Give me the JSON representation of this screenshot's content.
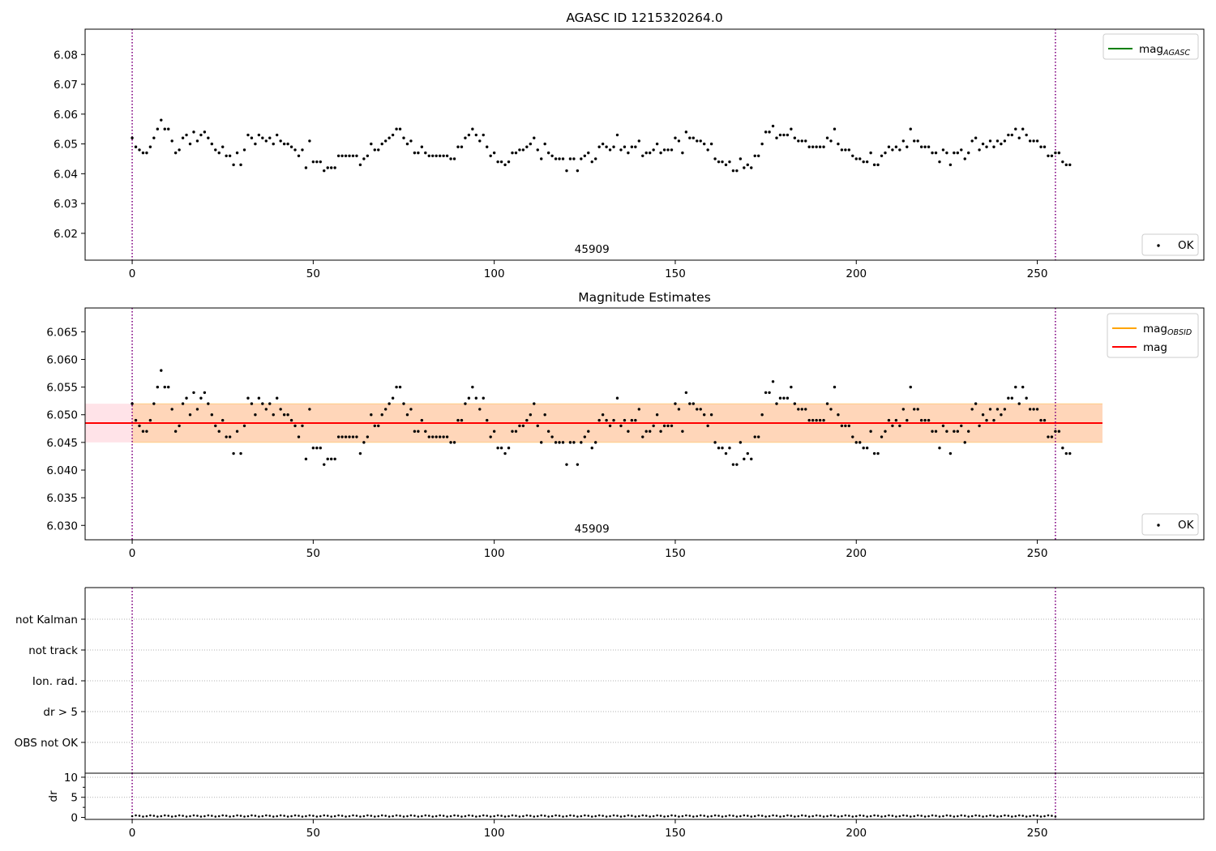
{
  "figure": {
    "top_title": "AGASC ID 1215320264.0",
    "middle_title": "Magnitude Estimates"
  },
  "chart_data": [
    {
      "type": "scatter",
      "panel": "top",
      "title": "AGASC ID 1215320264.0",
      "xlim": [
        -13,
        296
      ],
      "ylim": [
        6.011,
        6.0885
      ],
      "xticks": [
        0,
        50,
        100,
        150,
        200,
        250
      ],
      "yticks": [
        6.02,
        6.03,
        6.04,
        6.05,
        6.06,
        6.07,
        6.08
      ],
      "vlines": [
        0,
        255
      ],
      "annotation": "45909",
      "legend": {
        "upper": {
          "placement": "top-right",
          "entries": [
            {
              "label": "mag",
              "sub": "AGASC",
              "color": "#008000",
              "kind": "line"
            }
          ]
        },
        "lower": {
          "placement": "bottom-right",
          "entries": [
            {
              "label": "OK",
              "color": "#000000",
              "kind": "marker"
            }
          ]
        }
      },
      "series": [
        {
          "name": "OK",
          "x_start": 0,
          "x_step": 1,
          "y": [
            6.052,
            6.049,
            6.048,
            6.047,
            6.047,
            6.049,
            6.052,
            6.055,
            6.058,
            6.055,
            6.055,
            6.051,
            6.047,
            6.048,
            6.052,
            6.053,
            6.05,
            6.054,
            6.051,
            6.053,
            6.054,
            6.052,
            6.05,
            6.048,
            6.047,
            6.049,
            6.046,
            6.046,
            6.043,
            6.047,
            6.043,
            6.048,
            6.053,
            6.052,
            6.05,
            6.053,
            6.052,
            6.051,
            6.052,
            6.05,
            6.053,
            6.051,
            6.05,
            6.05,
            6.049,
            6.048,
            6.046,
            6.048,
            6.042,
            6.051,
            6.044,
            6.044,
            6.044,
            6.041,
            6.042,
            6.042,
            6.042,
            6.046,
            6.046,
            6.046,
            6.046,
            6.046,
            6.046,
            6.043,
            6.045,
            6.046,
            6.05,
            6.048,
            6.048,
            6.05,
            6.051,
            6.052,
            6.053,
            6.055,
            6.055,
            6.052,
            6.05,
            6.051,
            6.047,
            6.047,
            6.049,
            6.047,
            6.046,
            6.046,
            6.046,
            6.046,
            6.046,
            6.046,
            6.045,
            6.045,
            6.049,
            6.049,
            6.052,
            6.053,
            6.055,
            6.053,
            6.051,
            6.053,
            6.049,
            6.046,
            6.047,
            6.044,
            6.044,
            6.043,
            6.044,
            6.047,
            6.047,
            6.048,
            6.048,
            6.049,
            6.05,
            6.052,
            6.048,
            6.045,
            6.05,
            6.047,
            6.046,
            6.045,
            6.045,
            6.045,
            6.041,
            6.045,
            6.045,
            6.041,
            6.045,
            6.046,
            6.047,
            6.044,
            6.045,
            6.049,
            6.05,
            6.049,
            6.048,
            6.049,
            6.053,
            6.048,
            6.049,
            6.047,
            6.049,
            6.049,
            6.051,
            6.046,
            6.047,
            6.047,
            6.048,
            6.05,
            6.047,
            6.048,
            6.048,
            6.048,
            6.052,
            6.051,
            6.047,
            6.054,
            6.052,
            6.052,
            6.051,
            6.051,
            6.05,
            6.048,
            6.05,
            6.045,
            6.044,
            6.044,
            6.043,
            6.044,
            6.041,
            6.041,
            6.045,
            6.042,
            6.043,
            6.042,
            6.046,
            6.046,
            6.05,
            6.054,
            6.054,
            6.056,
            6.052,
            6.053,
            6.053,
            6.053,
            6.055,
            6.052,
            6.051,
            6.051,
            6.051,
            6.049,
            6.049,
            6.049,
            6.049,
            6.049,
            6.052,
            6.051,
            6.055,
            6.05,
            6.048,
            6.048,
            6.048,
            6.046,
            6.045,
            6.045,
            6.044,
            6.044,
            6.047,
            6.043,
            6.043,
            6.046,
            6.047,
            6.049,
            6.048,
            6.049,
            6.048,
            6.051,
            6.049,
            6.055,
            6.051,
            6.051,
            6.049,
            6.049,
            6.049,
            6.047,
            6.047,
            6.044,
            6.048,
            6.047,
            6.043,
            6.047,
            6.047,
            6.048,
            6.045,
            6.047,
            6.051,
            6.052,
            6.048,
            6.05,
            6.049,
            6.051,
            6.049,
            6.051,
            6.05,
            6.051,
            6.053,
            6.053,
            6.055,
            6.052,
            6.055,
            6.053,
            6.051,
            6.051,
            6.051,
            6.049,
            6.049,
            6.046,
            6.046,
            6.047,
            6.047,
            6.044,
            6.043,
            6.043
          ]
        }
      ]
    },
    {
      "type": "scatter",
      "panel": "middle",
      "title": "Magnitude Estimates",
      "xlim": [
        -13,
        296
      ],
      "ylim": [
        6.0274,
        6.0693
      ],
      "xticks": [
        0,
        50,
        100,
        150,
        200,
        250
      ],
      "yticks": [
        6.03,
        6.035,
        6.04,
        6.045,
        6.05,
        6.055,
        6.06,
        6.065
      ],
      "ytick_labels": [
        "6.030",
        "6.035",
        "6.040",
        "6.045",
        "6.050",
        "6.055",
        "6.060",
        "6.065"
      ],
      "vlines": [
        0,
        255
      ],
      "annotation": "45909",
      "bands": [
        {
          "x0": -13,
          "x1": 268,
          "y0": 6.045,
          "y1": 6.052,
          "color": "#ffc0cb",
          "opacity": 0.45
        },
        {
          "x0": 0,
          "x1": 268,
          "y0": 6.045,
          "y1": 6.052,
          "color": "#ffa500",
          "opacity": 0.2
        }
      ],
      "lines": [
        {
          "name": "mag",
          "color": "#ff0000",
          "x0": -13,
          "x1": 268,
          "y": 6.0485
        }
      ],
      "legend": {
        "upper": {
          "placement": "top-right",
          "entries": [
            {
              "label": "mag",
              "sub": "OBSID",
              "color": "#ffa500",
              "kind": "line"
            },
            {
              "label": "mag",
              "color": "#ff0000",
              "kind": "line"
            }
          ]
        },
        "lower": {
          "placement": "bottom-right",
          "entries": [
            {
              "label": "OK",
              "color": "#000000",
              "kind": "marker"
            }
          ]
        }
      },
      "series": [
        {
          "name": "OK",
          "x_start": 0,
          "x_step": 1,
          "y": [
            6.052,
            6.049,
            6.048,
            6.047,
            6.047,
            6.049,
            6.052,
            6.055,
            6.058,
            6.055,
            6.055,
            6.051,
            6.047,
            6.048,
            6.052,
            6.053,
            6.05,
            6.054,
            6.051,
            6.053,
            6.054,
            6.052,
            6.05,
            6.048,
            6.047,
            6.049,
            6.046,
            6.046,
            6.043,
            6.047,
            6.043,
            6.048,
            6.053,
            6.052,
            6.05,
            6.053,
            6.052,
            6.051,
            6.052,
            6.05,
            6.053,
            6.051,
            6.05,
            6.05,
            6.049,
            6.048,
            6.046,
            6.048,
            6.042,
            6.051,
            6.044,
            6.044,
            6.044,
            6.041,
            6.042,
            6.042,
            6.042,
            6.046,
            6.046,
            6.046,
            6.046,
            6.046,
            6.046,
            6.043,
            6.045,
            6.046,
            6.05,
            6.048,
            6.048,
            6.05,
            6.051,
            6.052,
            6.053,
            6.055,
            6.055,
            6.052,
            6.05,
            6.051,
            6.047,
            6.047,
            6.049,
            6.047,
            6.046,
            6.046,
            6.046,
            6.046,
            6.046,
            6.046,
            6.045,
            6.045,
            6.049,
            6.049,
            6.052,
            6.053,
            6.055,
            6.053,
            6.051,
            6.053,
            6.049,
            6.046,
            6.047,
            6.044,
            6.044,
            6.043,
            6.044,
            6.047,
            6.047,
            6.048,
            6.048,
            6.049,
            6.05,
            6.052,
            6.048,
            6.045,
            6.05,
            6.047,
            6.046,
            6.045,
            6.045,
            6.045,
            6.041,
            6.045,
            6.045,
            6.041,
            6.045,
            6.046,
            6.047,
            6.044,
            6.045,
            6.049,
            6.05,
            6.049,
            6.048,
            6.049,
            6.053,
            6.048,
            6.049,
            6.047,
            6.049,
            6.049,
            6.051,
            6.046,
            6.047,
            6.047,
            6.048,
            6.05,
            6.047,
            6.048,
            6.048,
            6.048,
            6.052,
            6.051,
            6.047,
            6.054,
            6.052,
            6.052,
            6.051,
            6.051,
            6.05,
            6.048,
            6.05,
            6.045,
            6.044,
            6.044,
            6.043,
            6.044,
            6.041,
            6.041,
            6.045,
            6.042,
            6.043,
            6.042,
            6.046,
            6.046,
            6.05,
            6.054,
            6.054,
            6.056,
            6.052,
            6.053,
            6.053,
            6.053,
            6.055,
            6.052,
            6.051,
            6.051,
            6.051,
            6.049,
            6.049,
            6.049,
            6.049,
            6.049,
            6.052,
            6.051,
            6.055,
            6.05,
            6.048,
            6.048,
            6.048,
            6.046,
            6.045,
            6.045,
            6.044,
            6.044,
            6.047,
            6.043,
            6.043,
            6.046,
            6.047,
            6.049,
            6.048,
            6.049,
            6.048,
            6.051,
            6.049,
            6.055,
            6.051,
            6.051,
            6.049,
            6.049,
            6.049,
            6.047,
            6.047,
            6.044,
            6.048,
            6.047,
            6.043,
            6.047,
            6.047,
            6.048,
            6.045,
            6.047,
            6.051,
            6.052,
            6.048,
            6.05,
            6.049,
            6.051,
            6.049,
            6.051,
            6.05,
            6.051,
            6.053,
            6.053,
            6.055,
            6.052,
            6.055,
            6.053,
            6.051,
            6.051,
            6.051,
            6.049,
            6.049,
            6.046,
            6.046,
            6.047,
            6.047,
            6.044,
            6.043,
            6.043
          ]
        }
      ]
    },
    {
      "type": "scatter",
      "panel": "flags",
      "xlim": [
        -13,
        296
      ],
      "categories": [
        "OBS not OK",
        "dr > 5",
        "Ion. rad.",
        "not track",
        "not Kalman"
      ],
      "vlines": [
        0,
        255
      ],
      "series": []
    },
    {
      "type": "scatter",
      "panel": "dr",
      "ylabel": "dr",
      "xlim": [
        -13,
        296
      ],
      "ylim": [
        -0.5,
        11
      ],
      "xticks": [
        0,
        50,
        100,
        150,
        200,
        250
      ],
      "yticks": [
        0,
        5,
        10
      ],
      "vlines": [
        0,
        255
      ],
      "series": [
        {
          "name": "dr",
          "x_start": 0,
          "x_step": 1,
          "y_values": [
            0.3,
            0.5,
            0.4,
            0.2
          ]
        }
      ]
    }
  ]
}
